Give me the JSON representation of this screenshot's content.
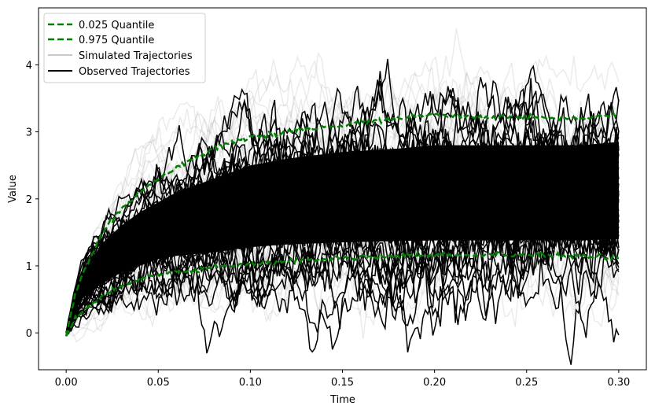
{
  "chart_data": {
    "type": "line",
    "title": "",
    "xlabel": "Time",
    "ylabel": "Value",
    "xlim": [
      -0.015,
      0.315
    ],
    "ylim": [
      -0.55,
      4.85
    ],
    "x_ticks": [
      0.0,
      0.05,
      0.1,
      0.15,
      0.2,
      0.25,
      0.3
    ],
    "x_tick_labels": [
      "0.00",
      "0.05",
      "0.10",
      "0.15",
      "0.20",
      "0.25",
      "0.30"
    ],
    "y_ticks": [
      0,
      1,
      2,
      3,
      4
    ],
    "y_tick_labels": [
      "0",
      "1",
      "2",
      "3",
      "4"
    ],
    "grid": false,
    "legend_position": "top-left",
    "legend": [
      {
        "label": "0.025 Quantile",
        "color": "#008000",
        "style": "dashed"
      },
      {
        "label": "0.975 Quantile",
        "color": "#008000",
        "style": "dashed"
      },
      {
        "label": "Simulated Trajectories",
        "color": "#c8c8c8",
        "style": "solid"
      },
      {
        "label": "Observed Trajectories",
        "color": "#000000",
        "style": "solid"
      }
    ],
    "series": [
      {
        "name": "0.025 Quantile",
        "color": "#008000",
        "x": [
          0.0,
          0.005,
          0.01,
          0.02,
          0.03,
          0.04,
          0.05,
          0.06,
          0.08,
          0.1,
          0.12,
          0.15,
          0.18,
          0.2,
          0.22,
          0.25,
          0.28,
          0.3
        ],
        "y": [
          -0.05,
          0.2,
          0.35,
          0.55,
          0.7,
          0.8,
          0.87,
          0.92,
          0.98,
          1.03,
          1.07,
          1.12,
          1.15,
          1.17,
          1.16,
          1.17,
          1.15,
          1.12
        ]
      },
      {
        "name": "0.975 Quantile",
        "color": "#008000",
        "x": [
          0.0,
          0.005,
          0.01,
          0.02,
          0.03,
          0.04,
          0.05,
          0.06,
          0.08,
          0.1,
          0.12,
          0.15,
          0.18,
          0.2,
          0.22,
          0.25,
          0.28,
          0.3
        ],
        "y": [
          -0.05,
          0.6,
          0.95,
          1.5,
          1.85,
          2.1,
          2.3,
          2.48,
          2.75,
          2.92,
          3.0,
          3.1,
          3.2,
          3.25,
          3.22,
          3.22,
          3.2,
          3.25
        ]
      }
    ],
    "simulated_band": {
      "name": "Simulated Trajectories",
      "color": "#c8c8c8",
      "lower_y": [
        0.0,
        0.2,
        0.3,
        0.5,
        0.6,
        0.72,
        0.8,
        0.85,
        0.92,
        0.97,
        1.02,
        1.06,
        1.08,
        1.1,
        1.1,
        1.1,
        1.08,
        1.05
      ],
      "upper_y": [
        0.0,
        0.6,
        0.95,
        1.45,
        1.8,
        2.05,
        2.25,
        2.4,
        2.65,
        2.85,
        2.95,
        3.05,
        3.1,
        3.15,
        3.15,
        3.15,
        3.15,
        3.2
      ]
    },
    "observed_band": {
      "name": "Observed Trajectories",
      "color": "#000000",
      "lower_y": [
        0.0,
        0.35,
        0.55,
        0.75,
        0.9,
        1.0,
        1.1,
        1.15,
        1.2,
        1.28,
        1.32,
        1.35,
        1.37,
        1.38,
        1.38,
        1.38,
        1.38,
        1.4
      ],
      "upper_y": [
        0.0,
        0.55,
        0.95,
        1.35,
        1.6,
        1.8,
        1.95,
        2.1,
        2.3,
        2.5,
        2.6,
        2.7,
        2.75,
        2.8,
        2.8,
        2.8,
        2.8,
        2.85
      ]
    }
  }
}
